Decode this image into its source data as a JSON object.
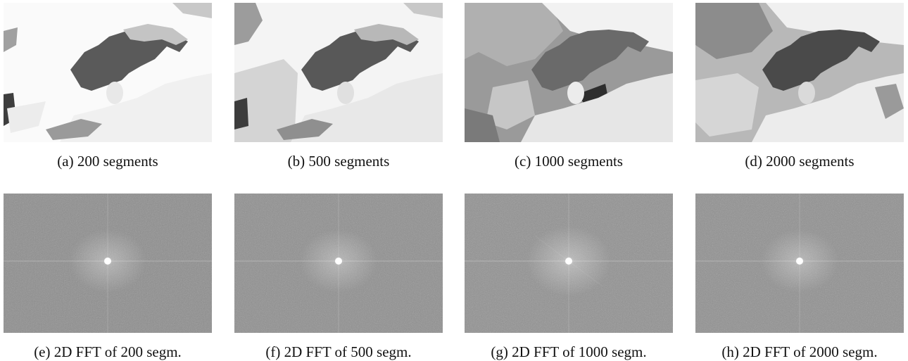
{
  "figure": {
    "top_row": [
      {
        "id": "a",
        "caption": "(a) 200 segments",
        "segments": 200,
        "bg": "#fafafa"
      },
      {
        "id": "b",
        "caption": "(b) 500 segments",
        "segments": 500,
        "bg": "#f4f4f4"
      },
      {
        "id": "c",
        "caption": "(c) 1000 segments",
        "segments": 1000,
        "bg": "#9a9a9a"
      },
      {
        "id": "d",
        "caption": "(d) 2000 segments",
        "segments": 2000,
        "bg": "#b8b8b8"
      }
    ],
    "bottom_row": [
      {
        "id": "e",
        "caption": "(e) 2D FFT of 200 segm.",
        "segments": 200
      },
      {
        "id": "f",
        "caption": "(f) 2D FFT of 500 segm.",
        "segments": 500
      },
      {
        "id": "g",
        "caption": "(g) 2D FFT of 1000 segm.",
        "segments": 1000
      },
      {
        "id": "h",
        "caption": "(h) 2D FFT of 2000 segm.",
        "segments": 2000
      }
    ]
  }
}
